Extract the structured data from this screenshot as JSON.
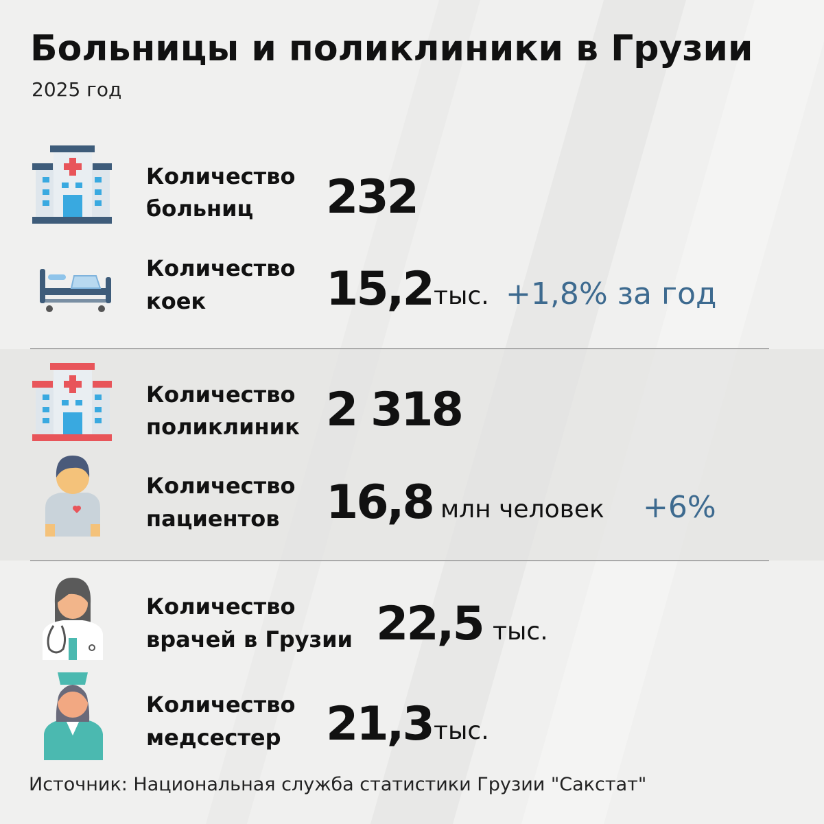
{
  "header": {
    "title": "Больницы и поликлиники в Грузии",
    "subtitle": "2025 год"
  },
  "rows": [
    {
      "label": [
        "Количество",
        "больниц"
      ],
      "value": "232"
    },
    {
      "label": [
        "Количество",
        "коек"
      ],
      "value": "15,2",
      "unit": "тыс.",
      "change": "+1,8% за год"
    },
    {
      "label": [
        "Количество",
        "поликлиник"
      ],
      "value": "2 318"
    },
    {
      "label": [
        "Количество",
        "пациентов"
      ],
      "value": "16,8",
      "unit": "млн человек",
      "change": "+6%"
    },
    {
      "label": [
        "Количество",
        "врачей в Грузии"
      ],
      "value": "22,5",
      "unit": "тыс."
    },
    {
      "label": [
        "Количество",
        "медсестер"
      ],
      "value": "21,3",
      "unit": "тыс."
    }
  ],
  "source": "Источник: Национальная служба статистики Грузии \"Сакстат\""
}
